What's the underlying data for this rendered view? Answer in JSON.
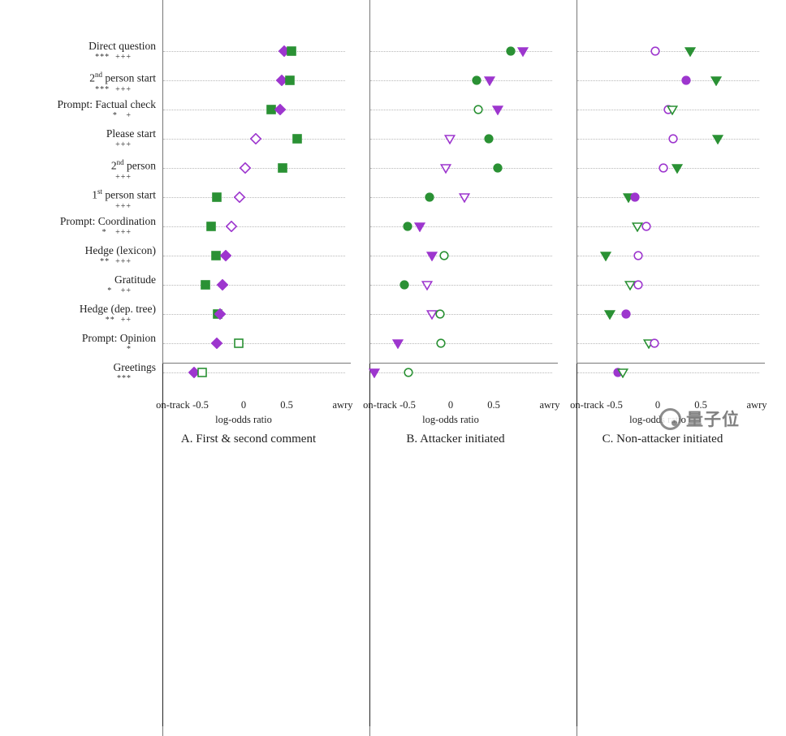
{
  "watermark": {
    "text": "量子位"
  },
  "colors": {
    "purple": "#9d36ce",
    "green": "#2a9134",
    "zero_line": "#222222",
    "grid": "#b8b8b8",
    "axis": "#777777"
  },
  "chart_data": {
    "type": "scatter",
    "xlabel": "log-odds ratio",
    "x_axis": {
      "left_label": "on-track",
      "right_label": "awry",
      "ticks": [
        -0.5,
        0,
        0.5
      ],
      "range": [
        -1.0,
        1.05
      ],
      "grid": "dotted horizontal per category"
    },
    "categories": [
      {
        "label": "Direct question",
        "sig": "***  +++"
      },
      {
        "label": "2nd person start",
        "sig": "***  +++"
      },
      {
        "label": "Prompt: Factual check",
        "sig": "*   +"
      },
      {
        "label": "Please start",
        "sig": "+++"
      },
      {
        "label": "2nd person",
        "sig": "+++"
      },
      {
        "label": "1st person start",
        "sig": "+++"
      },
      {
        "label": "Prompt: Coordination",
        "sig": "*   +++"
      },
      {
        "label": "Hedge (lexicon)",
        "sig": "**  +++"
      },
      {
        "label": "Gratitude",
        "sig": "*   ++"
      },
      {
        "label": "Hedge (dep. tree)",
        "sig": "**  ++"
      },
      {
        "label": "Prompt: Opinion",
        "sig": "*"
      },
      {
        "label": "Greetings",
        "sig": "***"
      }
    ],
    "panels": [
      {
        "title": "A. First & second comment",
        "rows": [
          [
            {
              "shape": "diamond",
              "color": "purple",
              "filled": true,
              "x": 0.47
            },
            {
              "shape": "square",
              "color": "green",
              "filled": true,
              "x": 0.56
            }
          ],
          [
            {
              "shape": "diamond",
              "color": "purple",
              "filled": true,
              "x": 0.44
            },
            {
              "shape": "square",
              "color": "green",
              "filled": true,
              "x": 0.54
            }
          ],
          [
            {
              "shape": "square",
              "color": "green",
              "filled": true,
              "x": 0.32
            },
            {
              "shape": "diamond",
              "color": "purple",
              "filled": true,
              "x": 0.42
            }
          ],
          [
            {
              "shape": "diamond",
              "color": "purple",
              "filled": false,
              "x": 0.14
            },
            {
              "shape": "square",
              "color": "green",
              "filled": true,
              "x": 0.62
            }
          ],
          [
            {
              "shape": "diamond",
              "color": "purple",
              "filled": false,
              "x": 0.02
            },
            {
              "shape": "square",
              "color": "green",
              "filled": true,
              "x": 0.45
            }
          ],
          [
            {
              "shape": "square",
              "color": "green",
              "filled": true,
              "x": -0.31
            },
            {
              "shape": "diamond",
              "color": "purple",
              "filled": false,
              "x": -0.05
            }
          ],
          [
            {
              "shape": "square",
              "color": "green",
              "filled": true,
              "x": -0.38
            },
            {
              "shape": "diamond",
              "color": "purple",
              "filled": false,
              "x": -0.14
            }
          ],
          [
            {
              "shape": "square",
              "color": "green",
              "filled": true,
              "x": -0.32
            },
            {
              "shape": "diamond",
              "color": "purple",
              "filled": true,
              "x": -0.21
            }
          ],
          [
            {
              "shape": "square",
              "color": "green",
              "filled": true,
              "x": -0.44
            },
            {
              "shape": "diamond",
              "color": "purple",
              "filled": true,
              "x": -0.25
            }
          ],
          [
            {
              "shape": "square",
              "color": "green",
              "filled": true,
              "x": -0.3
            },
            {
              "shape": "diamond",
              "color": "purple",
              "filled": true,
              "x": -0.27
            }
          ],
          [
            {
              "shape": "diamond",
              "color": "purple",
              "filled": true,
              "x": -0.31
            },
            {
              "shape": "square",
              "color": "green",
              "filled": false,
              "x": -0.06
            }
          ],
          [
            {
              "shape": "diamond",
              "color": "purple",
              "filled": true,
              "x": -0.58
            },
            {
              "shape": "square",
              "color": "green",
              "filled": false,
              "x": -0.48
            }
          ]
        ]
      },
      {
        "title": "B. Attacker initiated",
        "rows": [
          [
            {
              "shape": "circle",
              "color": "green",
              "filled": true,
              "x": 0.7
            },
            {
              "shape": "triangle",
              "color": "purple",
              "filled": true,
              "x": 0.84
            }
          ],
          [
            {
              "shape": "circle",
              "color": "green",
              "filled": true,
              "x": 0.3
            },
            {
              "shape": "triangle",
              "color": "purple",
              "filled": true,
              "x": 0.45
            }
          ],
          [
            {
              "shape": "circle",
              "color": "green",
              "filled": false,
              "x": 0.32
            },
            {
              "shape": "triangle",
              "color": "purple",
              "filled": true,
              "x": 0.55
            }
          ],
          [
            {
              "shape": "triangle",
              "color": "purple",
              "filled": false,
              "x": -0.01
            },
            {
              "shape": "circle",
              "color": "green",
              "filled": true,
              "x": 0.44
            }
          ],
          [
            {
              "shape": "triangle",
              "color": "purple",
              "filled": false,
              "x": -0.06
            },
            {
              "shape": "circle",
              "color": "green",
              "filled": true,
              "x": 0.55
            }
          ],
          [
            {
              "shape": "circle",
              "color": "green",
              "filled": true,
              "x": -0.25
            },
            {
              "shape": "triangle",
              "color": "purple",
              "filled": false,
              "x": 0.16
            }
          ],
          [
            {
              "shape": "circle",
              "color": "green",
              "filled": true,
              "x": -0.5
            },
            {
              "shape": "triangle",
              "color": "purple",
              "filled": true,
              "x": -0.36
            }
          ],
          [
            {
              "shape": "triangle",
              "color": "purple",
              "filled": true,
              "x": -0.22
            },
            {
              "shape": "circle",
              "color": "green",
              "filled": false,
              "x": -0.08
            }
          ],
          [
            {
              "shape": "circle",
              "color": "green",
              "filled": true,
              "x": -0.54
            },
            {
              "shape": "triangle",
              "color": "purple",
              "filled": false,
              "x": -0.27
            }
          ],
          [
            {
              "shape": "triangle",
              "color": "purple",
              "filled": false,
              "x": -0.22
            },
            {
              "shape": "circle",
              "color": "green",
              "filled": false,
              "x": -0.12
            }
          ],
          [
            {
              "shape": "triangle",
              "color": "purple",
              "filled": true,
              "x": -0.61
            },
            {
              "shape": "circle",
              "color": "green",
              "filled": false,
              "x": -0.11
            }
          ],
          [
            {
              "shape": "triangle",
              "color": "purple",
              "filled": true,
              "x": -0.89
            },
            {
              "shape": "circle",
              "color": "green",
              "filled": false,
              "x": -0.49
            }
          ]
        ]
      },
      {
        "title": "C. Non-attacker initiated",
        "rows": [
          [
            {
              "shape": "circle",
              "color": "purple",
              "filled": false,
              "x": -0.03
            },
            {
              "shape": "triangle",
              "color": "green",
              "filled": true,
              "x": 0.38
            }
          ],
          [
            {
              "shape": "circle",
              "color": "purple",
              "filled": true,
              "x": 0.33
            },
            {
              "shape": "triangle",
              "color": "green",
              "filled": true,
              "x": 0.68
            }
          ],
          [
            {
              "shape": "circle",
              "color": "purple",
              "filled": false,
              "x": 0.12
            },
            {
              "shape": "triangle",
              "color": "green",
              "filled": false,
              "x": 0.17
            }
          ],
          [
            {
              "shape": "circle",
              "color": "purple",
              "filled": false,
              "x": 0.18
            },
            {
              "shape": "triangle",
              "color": "green",
              "filled": true,
              "x": 0.7
            }
          ],
          [
            {
              "shape": "circle",
              "color": "purple",
              "filled": false,
              "x": 0.07
            },
            {
              "shape": "triangle",
              "color": "green",
              "filled": true,
              "x": 0.23
            }
          ],
          [
            {
              "shape": "triangle",
              "color": "green",
              "filled": true,
              "x": -0.34
            },
            {
              "shape": "circle",
              "color": "purple",
              "filled": true,
              "x": -0.26
            }
          ],
          [
            {
              "shape": "triangle",
              "color": "green",
              "filled": false,
              "x": -0.24
            },
            {
              "shape": "circle",
              "color": "purple",
              "filled": false,
              "x": -0.13
            }
          ],
          [
            {
              "shape": "triangle",
              "color": "green",
              "filled": true,
              "x": -0.6
            },
            {
              "shape": "circle",
              "color": "purple",
              "filled": false,
              "x": -0.23
            }
          ],
          [
            {
              "shape": "triangle",
              "color": "green",
              "filled": false,
              "x": -0.32
            },
            {
              "shape": "circle",
              "color": "purple",
              "filled": false,
              "x": -0.23
            }
          ],
          [
            {
              "shape": "triangle",
              "color": "green",
              "filled": true,
              "x": -0.56
            },
            {
              "shape": "circle",
              "color": "purple",
              "filled": true,
              "x": -0.37
            }
          ],
          [
            {
              "shape": "triangle",
              "color": "green",
              "filled": false,
              "x": -0.1
            },
            {
              "shape": "circle",
              "color": "purple",
              "filled": false,
              "x": -0.04
            }
          ],
          [
            {
              "shape": "circle",
              "color": "purple",
              "filled": true,
              "x": -0.46
            },
            {
              "shape": "triangle",
              "color": "green",
              "filled": false,
              "x": -0.41
            }
          ]
        ]
      }
    ]
  }
}
